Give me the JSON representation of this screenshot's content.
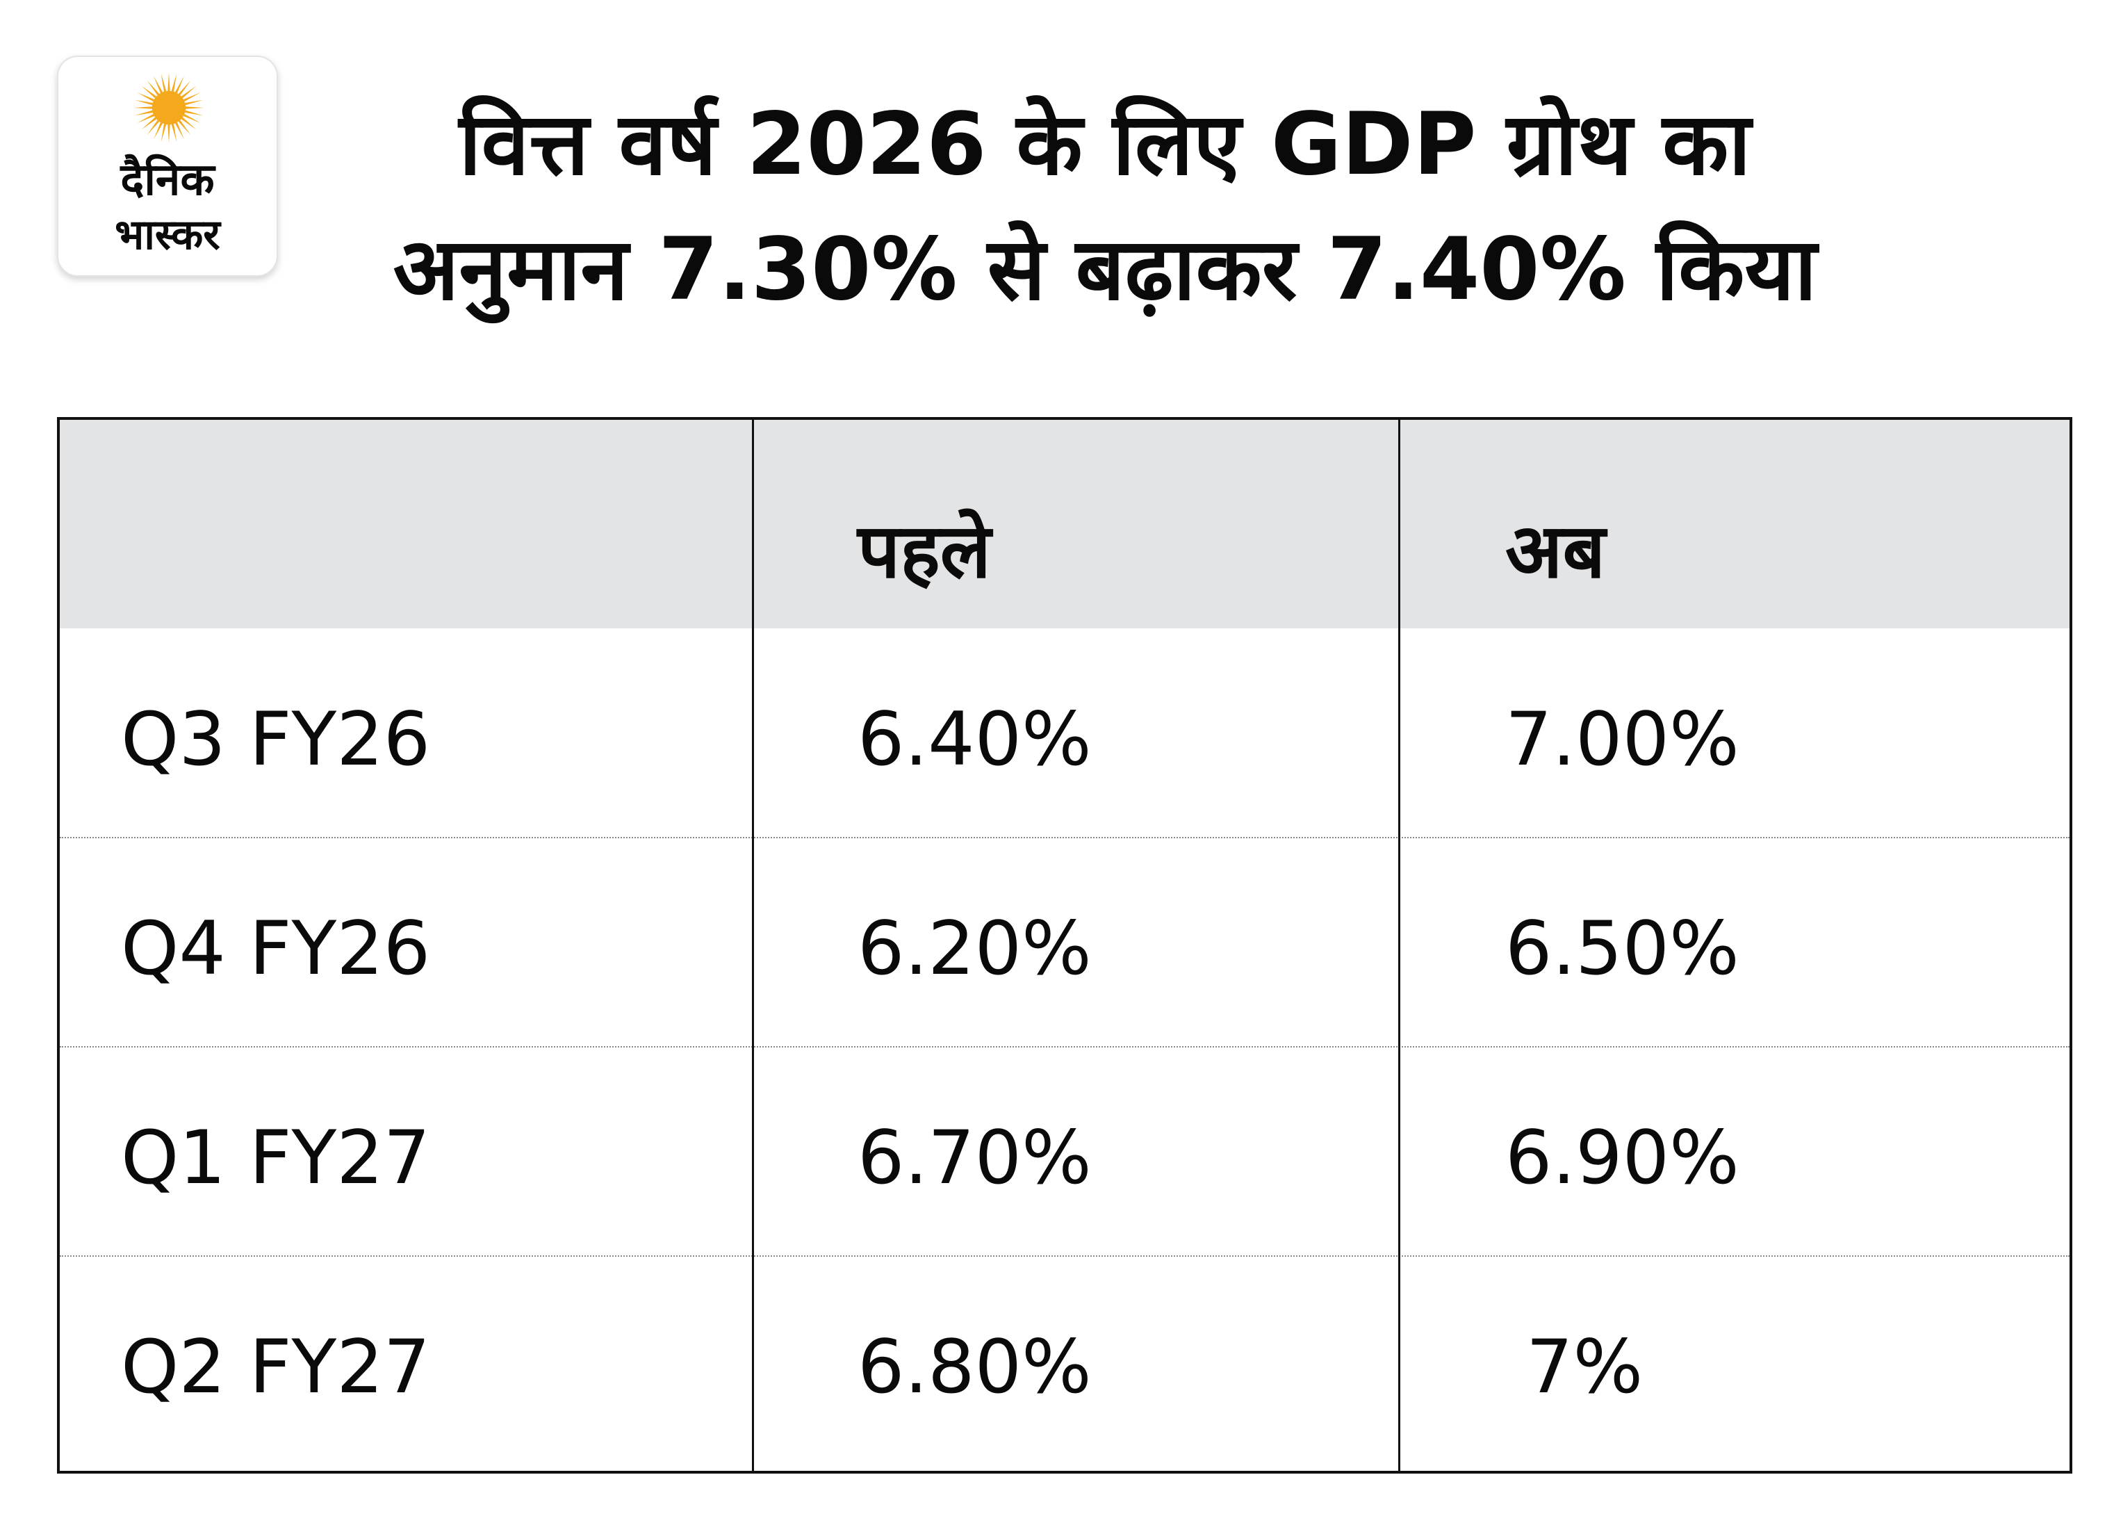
{
  "logo": {
    "line1": "दैनिक",
    "line2": "भास्कर",
    "sun_color": "#f4a81b"
  },
  "title": {
    "line1": "वित्त वर्ष 2026 के लिए GDP ग्रोथ का",
    "line2": "अनुमान 7.30% से बढ़ाकर 7.40% किया"
  },
  "chart_data": {
    "type": "table",
    "title": "वित्त वर्ष 2026 के लिए GDP ग्रोथ का अनुमान 7.30% से बढ़ाकर 7.40% किया",
    "columns": [
      "",
      "पहले",
      "अब"
    ],
    "rows": [
      {
        "period": "Q3 FY26",
        "before": "6.40%",
        "now": "7.00%"
      },
      {
        "period": "Q4 FY26",
        "before": "6.20%",
        "now": "6.50%"
      },
      {
        "period": "Q1 FY27",
        "before": "6.70%",
        "now": "6.90%"
      },
      {
        "period": "Q2 FY27",
        "before": "6.80%",
        "now": "7%"
      }
    ]
  },
  "colors": {
    "header_bg": "#e3e4e6",
    "border": "#111111",
    "text": "#0a0a0a"
  }
}
